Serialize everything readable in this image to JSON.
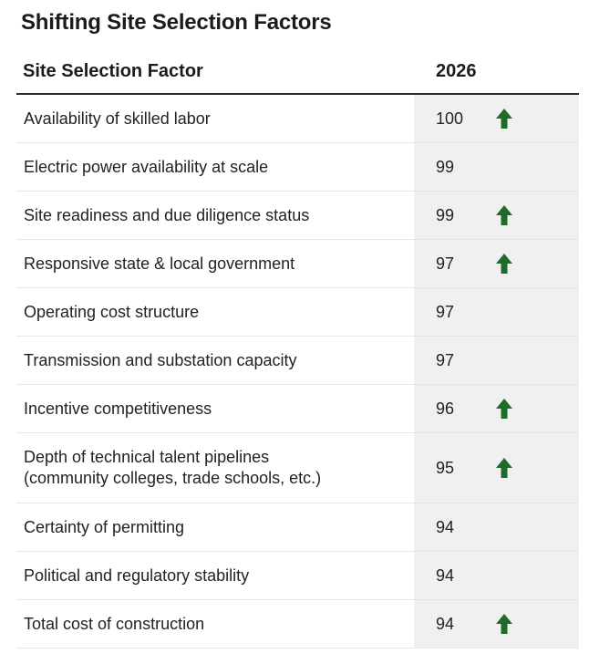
{
  "title": "Shifting Site Selection Factors",
  "chart_data": {
    "type": "table",
    "columns": [
      "Site Selection Factor",
      "2026"
    ],
    "rows": [
      {
        "factor": "Availability of skilled labor",
        "score": 100,
        "trend": "up"
      },
      {
        "factor": "Electric power availability at scale",
        "score": 99,
        "trend": "none"
      },
      {
        "factor": "Site readiness and due diligence status",
        "score": 99,
        "trend": "up"
      },
      {
        "factor": "Responsive state & local government",
        "score": 97,
        "trend": "up"
      },
      {
        "factor": "Operating cost structure",
        "score": 97,
        "trend": "none"
      },
      {
        "factor": "Transmission and substation capacity",
        "score": 97,
        "trend": "none"
      },
      {
        "factor": "Incentive competitiveness",
        "score": 96,
        "trend": "up"
      },
      {
        "factor": "Depth of technical talent pipelines\n(community colleges, trade schools, etc.)",
        "score": 95,
        "trend": "up"
      },
      {
        "factor": "Certainty of permitting",
        "score": 94,
        "trend": "none"
      },
      {
        "factor": "Political and regulatory stability",
        "score": 94,
        "trend": "none"
      },
      {
        "factor": "Total cost of construction",
        "score": 94,
        "trend": "up"
      }
    ],
    "colors": {
      "arrow": "#1f6b2a",
      "score_column_bg": "#f0f0f0",
      "header_rule": "#2b2b2b",
      "row_divider": "#e6e6e6"
    },
    "icons": {
      "trend_up": "up-arrow-icon"
    }
  }
}
